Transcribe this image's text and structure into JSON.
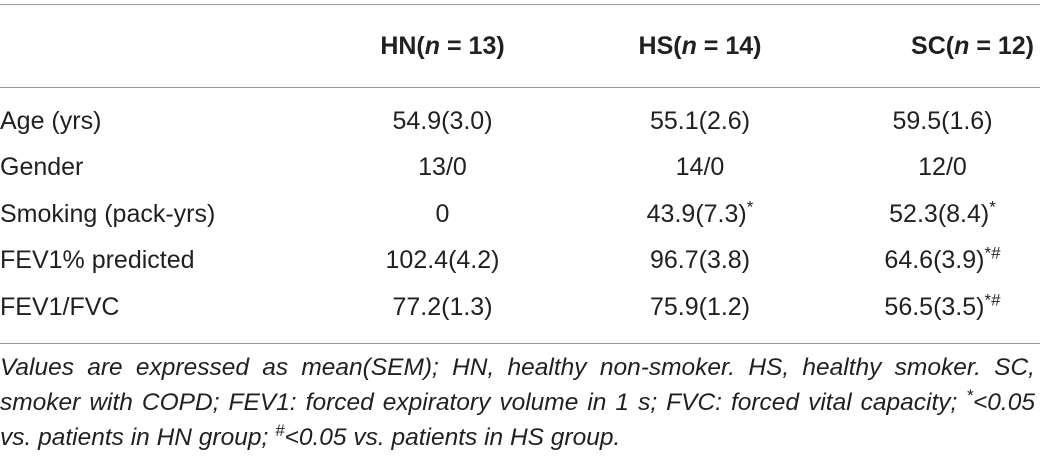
{
  "table": {
    "header": [
      [
        "HN(",
        "n",
        " = 13)"
      ],
      [
        "HS(",
        "n",
        " = 14)"
      ],
      [
        "SC(",
        "n",
        " = 12)"
      ]
    ],
    "rows": [
      {
        "label": "Age (yrs)",
        "cells": [
          {
            "value": "54.9(3.0)"
          },
          {
            "value": "55.1(2.6)"
          },
          {
            "value": "59.5(1.6)"
          }
        ]
      },
      {
        "label": "Gender",
        "cells": [
          {
            "value": "13/0"
          },
          {
            "value": "14/0"
          },
          {
            "value": "12/0"
          }
        ]
      },
      {
        "label": "Smoking (pack-yrs)",
        "cells": [
          {
            "value": "0"
          },
          {
            "value": "43.9(7.3)",
            "mark": "*"
          },
          {
            "value": "52.3(8.4)",
            "mark": "*"
          }
        ]
      },
      {
        "label": "FEV1% predicted",
        "cells": [
          {
            "value": "102.4(4.2)"
          },
          {
            "value": "96.7(3.8)"
          },
          {
            "value": "64.6(3.9)",
            "mark": "*#"
          }
        ]
      },
      {
        "label": "FEV1/FVC",
        "cells": [
          {
            "value": "77.2(1.3)"
          },
          {
            "value": "75.9(1.2)"
          },
          {
            "value": "56.5(3.5)",
            "mark": "*#"
          }
        ]
      }
    ],
    "footnote": [
      {
        "text": "Values are expressed as mean(SEM); HN, healthy non-smoker. HS, healthy smoker. SC, smoker with COPD; FEV1: forced expiratory volume in 1 s; FVC: forced vital capacity; "
      },
      {
        "sup": "*"
      },
      {
        "text": "<0.05 vs. patients in HN group; "
      },
      {
        "sup": "#"
      },
      {
        "text": "<0.05 vs. patients in HS group."
      }
    ]
  }
}
